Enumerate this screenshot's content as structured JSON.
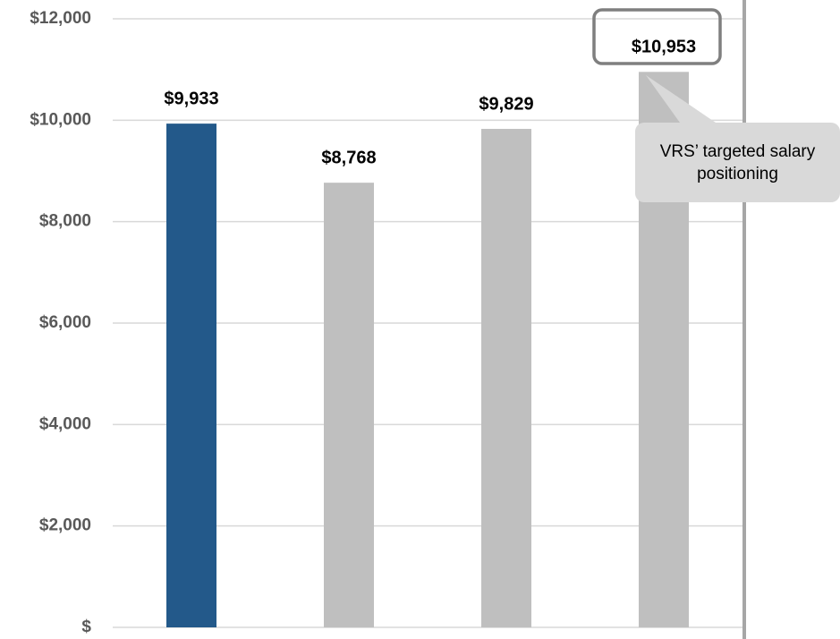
{
  "chart_data": {
    "type": "bar",
    "categories": [
      null,
      null,
      null,
      null
    ],
    "values": [
      9933,
      8768,
      9829,
      10953
    ],
    "value_labels": [
      "$9,933",
      "$8,768",
      "$9,829",
      "$10,953"
    ],
    "colors": [
      "#23598a",
      "#bfbfbf",
      "#bfbfbf",
      "#bfbfbf"
    ],
    "ylim": [
      0,
      12000
    ],
    "yticks": [
      {
        "value": 0,
        "label": "$"
      },
      {
        "value": 2000,
        "label": "$2,000"
      },
      {
        "value": 4000,
        "label": "$4,000"
      },
      {
        "value": 6000,
        "label": "$6,000"
      },
      {
        "value": 8000,
        "label": "$8,000"
      },
      {
        "value": 10000,
        "label": "$10,000"
      },
      {
        "value": 12000,
        "label": "$12,000"
      }
    ],
    "grid": true,
    "annotation": "VRS’ targeted salary positioning"
  }
}
